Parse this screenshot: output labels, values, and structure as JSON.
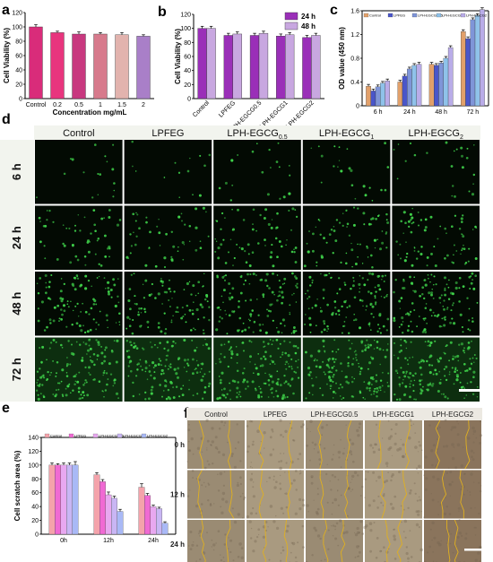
{
  "panel_labels": {
    "a": "a",
    "b": "b",
    "c": "c",
    "d": "d",
    "e": "e",
    "f": "f"
  },
  "colors": {
    "a": [
      "#d92c7a",
      "#e8357e",
      "#c8387f",
      "#d77a8c",
      "#e2b3ae",
      "#a97fc8"
    ],
    "b24": "#9a2fb8",
    "b48": "#c8a7e0",
    "c": [
      "#e2a06a",
      "#4a56c9",
      "#7f95d8",
      "#8fc2ea",
      "#b9ace8"
    ],
    "e": [
      "#f4a3ab",
      "#f06ad3",
      "#e8a8f0",
      "#c9b6f4",
      "#a9b9f6"
    ],
    "micro_bg": "#030a03",
    "micro_cell": "#3fd24a",
    "scratch_bg": "#9d8a72",
    "scratch_line": "#e0b020"
  },
  "chart_data": [
    {
      "panel": "a",
      "type": "bar",
      "categories": [
        "Control",
        "0.2",
        "0.5",
        "1",
        "1.5",
        "2"
      ],
      "values": [
        100,
        92,
        90,
        90,
        89,
        87
      ],
      "errors": [
        3,
        2,
        3,
        2,
        3,
        2
      ],
      "ylabel": "Cell Viability (%)",
      "xlabel": "Concentration mg/mL",
      "ylim": [
        0,
        120
      ],
      "yticks": [
        0,
        20,
        40,
        60,
        80,
        100,
        120
      ]
    },
    {
      "panel": "b",
      "type": "bar",
      "categories": [
        "Control",
        "LPFEG",
        "LPH-EGCG0.5",
        "LPH-EGCG1",
        "LPH-EGCG2"
      ],
      "series": [
        {
          "name": "24 h",
          "values": [
            100,
            90,
            90,
            89,
            87
          ]
        },
        {
          "name": "48 h",
          "values": [
            100,
            92,
            93,
            91,
            90
          ]
        }
      ],
      "ylabel": "Cell Viability (%)",
      "ylim": [
        0,
        120
      ],
      "yticks": [
        0,
        20,
        40,
        60,
        80,
        100,
        120
      ]
    },
    {
      "panel": "c",
      "type": "bar",
      "categories": [
        "6 h",
        "24 h",
        "48 h",
        "72 h"
      ],
      "series": [
        {
          "name": "Control",
          "values": [
            0.33,
            0.4,
            0.7,
            1.25
          ]
        },
        {
          "name": "LPFEG",
          "values": [
            0.25,
            0.5,
            0.68,
            1.13
          ]
        },
        {
          "name": "LPH-EGCG 0.5",
          "values": [
            0.32,
            0.62,
            0.72,
            1.45
          ]
        },
        {
          "name": "LPH-EGCG1",
          "values": [
            0.38,
            0.68,
            0.8,
            1.52
          ]
        },
        {
          "name": "LPH-EGCG2",
          "values": [
            0.42,
            0.7,
            0.98,
            1.62
          ]
        }
      ],
      "ylabel": "OD value (450 nm)",
      "ylim": [
        0,
        1.6
      ],
      "yticks": [
        0,
        0.4,
        0.8,
        1.2,
        1.6
      ],
      "ytick_labels": [
        "0",
        "0.4",
        "0.8",
        "1.2",
        "1.6"
      ]
    },
    {
      "panel": "e",
      "type": "bar",
      "categories": [
        "0h",
        "12h",
        "24h"
      ],
      "series": [
        {
          "name": "Control",
          "values": [
            100,
            86,
            68
          ]
        },
        {
          "name": "LPFEG",
          "values": [
            100,
            76,
            56
          ]
        },
        {
          "name": "LPH-EGCG 0.5",
          "values": [
            100,
            57,
            40
          ]
        },
        {
          "name": "LPH-EGCG1",
          "values": [
            100,
            52,
            37
          ]
        },
        {
          "name": "LPH-EGCG2",
          "values": [
            100,
            33,
            16
          ]
        }
      ],
      "errors": [
        [
          3,
          3,
          5
        ],
        [
          2,
          3,
          3
        ],
        [
          3,
          4,
          2
        ],
        [
          3,
          3,
          2
        ],
        [
          5,
          3,
          2
        ]
      ],
      "ylabel": "Cell scratch area (%)",
      "ylim": [
        0,
        140
      ],
      "yticks": [
        0,
        20,
        40,
        60,
        80,
        100,
        120,
        140
      ]
    }
  ],
  "panel_d": {
    "columns": [
      "Control",
      "LPFEG",
      "LPH-EGCG",
      "LPH-EGCG",
      "LPH-EGCG"
    ],
    "column_subscripts": [
      "",
      "",
      "0.5",
      "1",
      "2"
    ],
    "rows": [
      "6 h",
      "24 h",
      "48 h",
      "72 h"
    ],
    "density": [
      [
        0.1,
        0.08,
        0.12,
        0.14,
        0.14
      ],
      [
        0.32,
        0.3,
        0.4,
        0.42,
        0.44
      ],
      [
        0.62,
        0.58,
        0.7,
        0.72,
        0.74
      ],
      [
        0.85,
        0.82,
        0.9,
        0.92,
        0.95
      ]
    ]
  },
  "panel_f": {
    "columns": [
      "Control",
      "LPFEG",
      "LPH-EGCG0.5",
      "LPH-EGCG1",
      "LPH-EGCG2"
    ],
    "rows": [
      "0 h",
      "12 h",
      "24 h"
    ]
  }
}
